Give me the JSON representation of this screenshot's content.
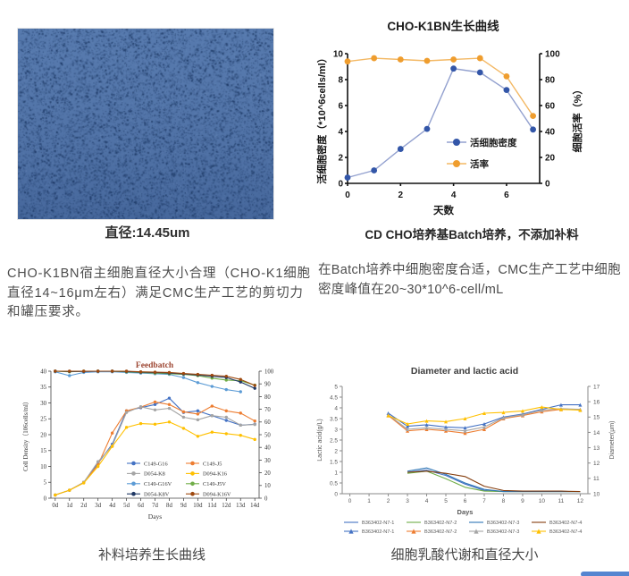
{
  "microscopy": {
    "caption": "直径:14.45um",
    "base_color": "#4e73aa",
    "speckle_color": "#16315c"
  },
  "paragraphs": {
    "left": "CHO-K1BN宿主细胞直径大小合理（CHO-K1细胞直径14~16μm左右）满足CMC生产工艺的剪切力和罐压要求。",
    "right": "在Batch培养中细胞密度合适，CMC生产工艺中细胞密度峰值在20~30*10^6-cell/mL"
  },
  "captions": {
    "growth": "CD CHO培养基Batch培养，不添加补料",
    "feedbatch": "补料培养生长曲线",
    "dia": "细胞乳酸代谢和直径大小"
  },
  "chart_data": [
    {
      "id": "growth",
      "type": "line",
      "title": "CHO-K1BN生长曲线",
      "xlabel": "天数",
      "xlim": [
        0,
        7.25
      ],
      "x": [
        0,
        1,
        2,
        3,
        4,
        5,
        6,
        7
      ],
      "x_ticks": [
        [
          0,
          "0"
        ],
        [
          2,
          "2"
        ],
        [
          4,
          "4"
        ],
        [
          6,
          "6"
        ]
      ],
      "y_left": {
        "label": "活细胞密度（*10^6cells/ml）",
        "lim": [
          0,
          10
        ],
        "ticks": [
          0,
          2,
          4,
          6,
          8,
          10
        ]
      },
      "y_right": {
        "label": "细胞活率（%）",
        "lim": [
          0,
          100
        ],
        "ticks": [
          0,
          20,
          40,
          60,
          80,
          100
        ]
      },
      "grid": false,
      "legend_position": "inside-right",
      "series": [
        {
          "name": "活细胞密度",
          "axis": "left",
          "color": "#3356a8",
          "line_color": "#93a1cf",
          "marker": "circle",
          "values": [
            0.45,
            1.0,
            2.65,
            4.2,
            8.85,
            8.55,
            7.2,
            4.15
          ]
        },
        {
          "name": "活率",
          "axis": "right",
          "color": "#ef9d2e",
          "line_color": "#f3b864",
          "marker": "circle",
          "values": [
            94,
            96.5,
            95.5,
            94.5,
            95.5,
            96.5,
            82.5,
            52
          ]
        }
      ]
    },
    {
      "id": "feedbatch",
      "type": "line",
      "title": "Feedbatch",
      "xlabel": "Days",
      "xlim": [
        -0.3,
        14.3
      ],
      "x": [
        0,
        1,
        2,
        3,
        4,
        5,
        6,
        7,
        8,
        9,
        10,
        11,
        12,
        13,
        14
      ],
      "x_ticks": [
        [
          0,
          "0d"
        ],
        [
          1,
          "1d"
        ],
        [
          2,
          "2d"
        ],
        [
          3,
          "3d"
        ],
        [
          4,
          "4d"
        ],
        [
          5,
          "5d"
        ],
        [
          6,
          "6d"
        ],
        [
          7,
          "7d"
        ],
        [
          8,
          "8d"
        ],
        [
          9,
          "9d"
        ],
        [
          10,
          "10d"
        ],
        [
          11,
          "11d"
        ],
        [
          12,
          "12d"
        ],
        [
          13,
          "13d"
        ],
        [
          14,
          "14d"
        ]
      ],
      "y_left": {
        "label": "Cell Density（106cells/ml）",
        "lim": [
          0,
          40
        ],
        "ticks": [
          0,
          5,
          10,
          15,
          20,
          25,
          30,
          35,
          40
        ]
      },
      "y_right": {
        "label": "",
        "lim": [
          0,
          100
        ],
        "ticks": [
          0,
          10,
          20,
          30,
          40,
          50,
          60,
          70,
          80,
          90,
          100
        ]
      },
      "grid": false,
      "legend_position": "inside-bottom-right",
      "series": [
        {
          "name": "C149-G16",
          "axis": "left",
          "color": "#4472c4",
          "marker": "circle",
          "values": [
            1,
            2.5,
            5,
            11,
            17,
            27.5,
            28.5,
            29.5,
            31.5,
            27,
            27.5,
            26,
            24.5,
            23,
            23.3
          ]
        },
        {
          "name": "C149-J5",
          "axis": "left",
          "color": "#ed7d31",
          "marker": "circle",
          "values": [
            1,
            2.5,
            5,
            10.5,
            20.5,
            27.5,
            28.7,
            30.3,
            29.5,
            27.2,
            26.5,
            29,
            27.5,
            26.8,
            24.3
          ]
        },
        {
          "name": "D054-K8",
          "axis": "left",
          "color": "#a5a5a5",
          "marker": "circle",
          "values": [
            1,
            2.5,
            5,
            11.5,
            16.5,
            27,
            28.8,
            27.8,
            28.3,
            25.5,
            24.7,
            26,
            25.5,
            23,
            23.2
          ]
        },
        {
          "name": "D094-K16",
          "axis": "left",
          "color": "#ffc000",
          "marker": "circle",
          "values": [
            1,
            2.5,
            4.8,
            10,
            16.3,
            22.3,
            23.5,
            23.3,
            24,
            22,
            19.5,
            20.8,
            20.3,
            19.8,
            18.5
          ]
        },
        {
          "name": "C149-G16V",
          "axis": "right",
          "color": "#5b9bd5",
          "marker": "circle",
          "values": [
            99.5,
            96.5,
            99,
            99.5,
            99.5,
            99,
            98.5,
            98,
            97.5,
            95,
            91,
            88,
            85.5,
            83.8,
            null
          ]
        },
        {
          "name": "C149-J5V",
          "axis": "right",
          "color": "#70ad47",
          "marker": "circle",
          "values": [
            100,
            99.5,
            100,
            100,
            100,
            99.5,
            99,
            98.5,
            98,
            97.5,
            96.5,
            94.5,
            93,
            92.5,
            89
          ]
        },
        {
          "name": "D054-K8V",
          "axis": "right",
          "color": "#1f3864",
          "marker": "circle",
          "values": [
            100,
            99.8,
            99.8,
            100,
            100,
            99.8,
            99.2,
            99,
            98.5,
            97.8,
            97,
            96,
            95,
            91.5,
            86.5
          ]
        },
        {
          "name": "D094-K16V",
          "axis": "right",
          "color": "#9e480e",
          "marker": "circle",
          "values": [
            100,
            100,
            100,
            100,
            100,
            100,
            99.5,
            99.2,
            99,
            98.2,
            97.5,
            96.8,
            96,
            93.5,
            88.8
          ]
        }
      ]
    },
    {
      "id": "dia_lactic",
      "type": "line",
      "title": "Diameter and lactic acid",
      "xlabel": "Days",
      "xlim": [
        -0.4,
        12.4
      ],
      "x": [
        0,
        1,
        2,
        3,
        4,
        5,
        6,
        7,
        8,
        9,
        10,
        11,
        12
      ],
      "x_ticks": [
        [
          0,
          "0"
        ],
        [
          1,
          "1"
        ],
        [
          2,
          "2"
        ],
        [
          3,
          "3"
        ],
        [
          4,
          "4"
        ],
        [
          5,
          "5"
        ],
        [
          6,
          "6"
        ],
        [
          7,
          "7"
        ],
        [
          8,
          "8"
        ],
        [
          9,
          "9"
        ],
        [
          10,
          "10"
        ],
        [
          11,
          "11"
        ],
        [
          12,
          "12"
        ]
      ],
      "y_left": {
        "label": "Lactic acid(g/L)",
        "lim": [
          0,
          5
        ],
        "ticks": [
          0,
          0.5,
          1,
          1.5,
          2,
          2.5,
          3,
          3.5,
          4,
          4.5,
          5
        ]
      },
      "y_right": {
        "label": "Diameter(μm)",
        "lim": [
          10,
          17
        ],
        "ticks": [
          10,
          11,
          12,
          13,
          14,
          15,
          16,
          17
        ]
      },
      "grid": false,
      "legend_position": "below",
      "series": [
        {
          "name": "B363402-N7-1",
          "axis": "left",
          "color": "#4472c4",
          "marker": null,
          "x": [
            3,
            4,
            5,
            6,
            7,
            8,
            9,
            10,
            11,
            12
          ],
          "values": [
            1.0,
            1.1,
            0.85,
            0.45,
            0.15,
            0.1,
            0.1,
            0.1,
            0.1,
            0.1
          ]
        },
        {
          "name": "B363402-N7-2",
          "axis": "left",
          "color": "#70ad47",
          "marker": null,
          "x": [
            3,
            4,
            5,
            6,
            7,
            8,
            9,
            10,
            11,
            12
          ],
          "values": [
            0.95,
            1.05,
            0.7,
            0.3,
            0.12,
            0.1,
            0.1,
            0.1,
            0.1,
            0.1
          ]
        },
        {
          "name": "B363402-N7-3",
          "axis": "left",
          "color": "#2e75b6",
          "marker": null,
          "x": [
            3,
            4,
            5,
            6,
            7,
            8,
            9,
            10,
            11,
            12
          ],
          "values": [
            1.05,
            1.2,
            0.9,
            0.5,
            0.2,
            0.1,
            0.1,
            0.1,
            0.1,
            0.1
          ]
        },
        {
          "name": "B363402-N7-4",
          "axis": "left",
          "color": "#843c0c",
          "marker": null,
          "x": [
            3,
            4,
            5,
            6,
            7,
            8,
            9,
            10,
            11,
            12
          ],
          "values": [
            1.0,
            1.05,
            0.95,
            0.8,
            0.35,
            0.15,
            0.12,
            0.12,
            0.12,
            0.1
          ]
        },
        {
          "name": "B363402-N7-1",
          "axis": "right",
          "color": "#4472c4",
          "marker": "triangle",
          "x": [
            2,
            3,
            4,
            5,
            6,
            7,
            8,
            9,
            10,
            11,
            12
          ],
          "values": [
            15.25,
            14.4,
            14.5,
            14.35,
            14.3,
            14.55,
            15.0,
            15.2,
            15.5,
            15.8,
            15.8
          ]
        },
        {
          "name": "B363402-N7-2",
          "axis": "right",
          "color": "#ed7d31",
          "marker": "triangle",
          "x": [
            2,
            3,
            4,
            5,
            6,
            7,
            8,
            9,
            10,
            11,
            12
          ],
          "values": [
            15.1,
            14.1,
            14.2,
            14.1,
            13.95,
            14.2,
            14.9,
            15.1,
            15.35,
            15.5,
            15.5
          ]
        },
        {
          "name": "B363402-N7-3",
          "axis": "right",
          "color": "#a5a5a5",
          "marker": "triangle",
          "x": [
            2,
            3,
            4,
            5,
            6,
            7,
            8,
            9,
            10,
            11,
            12
          ],
          "values": [
            15.15,
            14.2,
            14.3,
            14.2,
            14.1,
            14.35,
            14.95,
            15.15,
            15.45,
            15.55,
            15.5
          ]
        },
        {
          "name": "B363402-N7-4",
          "axis": "right",
          "color": "#ffc000",
          "marker": "triangle",
          "x": [
            2,
            3,
            4,
            5,
            6,
            7,
            8,
            9,
            10,
            11,
            12
          ],
          "values": [
            15.1,
            14.55,
            14.75,
            14.7,
            14.9,
            15.25,
            15.3,
            15.4,
            15.65,
            15.5,
            15.45
          ]
        }
      ]
    }
  ]
}
